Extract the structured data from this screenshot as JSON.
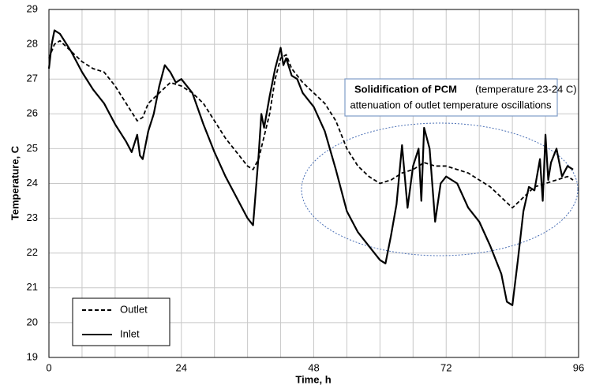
{
  "chart_data": {
    "type": "line",
    "xlabel": "Time, h",
    "ylabel": "Temperature, C",
    "xlim": [
      0,
      96
    ],
    "ylim": [
      19,
      29
    ],
    "xticks": [
      0,
      24,
      48,
      72,
      96
    ],
    "yticks": [
      19,
      20,
      21,
      22,
      23,
      24,
      25,
      26,
      27,
      28,
      29
    ],
    "xgrid": [
      0,
      6,
      12,
      18,
      24,
      30,
      36,
      42,
      48,
      54,
      60,
      66,
      72,
      78,
      84,
      90,
      96
    ],
    "grid": true,
    "legend": "lower left",
    "annotation": {
      "title": "Solidification of PCM",
      "detail": "(temperature 23-24 C)",
      "line2": "attenuation of outlet temperature oscillations"
    },
    "series": [
      {
        "name": "Outlet",
        "color": "#000000",
        "dashed": true,
        "x": [
          0,
          1,
          2,
          4,
          6,
          8,
          10,
          12,
          14,
          16,
          17,
          18,
          20,
          22,
          24,
          26,
          28,
          30,
          32,
          34,
          36,
          37,
          38,
          40,
          41,
          42,
          43,
          44,
          46,
          48,
          50,
          52,
          54,
          56,
          58,
          60,
          62,
          64,
          66,
          68,
          70,
          72,
          74,
          76,
          78,
          80,
          82,
          84,
          86,
          88,
          90,
          92,
          94,
          95
        ],
        "values": [
          27.6,
          28.0,
          28.1,
          27.8,
          27.5,
          27.3,
          27.2,
          26.8,
          26.3,
          25.8,
          25.9,
          26.3,
          26.6,
          26.9,
          26.8,
          26.6,
          26.3,
          25.8,
          25.3,
          24.9,
          24.5,
          24.4,
          24.7,
          26.0,
          27.0,
          27.6,
          27.7,
          27.3,
          26.9,
          26.6,
          26.3,
          25.8,
          25.0,
          24.5,
          24.2,
          24.0,
          24.1,
          24.3,
          24.4,
          24.6,
          24.5,
          24.5,
          24.4,
          24.3,
          24.1,
          23.9,
          23.6,
          23.3,
          23.6,
          23.9,
          24.0,
          24.1,
          24.2,
          24.1
        ]
      },
      {
        "name": "Inlet",
        "color": "#000000",
        "dashed": false,
        "x": [
          0,
          0.5,
          1,
          2,
          4,
          6,
          8,
          10,
          12,
          14,
          15,
          16,
          16.5,
          17,
          18,
          19,
          20,
          21,
          22,
          23,
          24,
          26,
          28,
          30,
          32,
          34,
          36,
          37,
          38,
          38.5,
          39,
          40,
          41,
          42,
          42.5,
          43,
          44,
          45,
          46,
          48,
          50,
          52,
          54,
          56,
          58,
          60,
          61,
          62,
          63,
          64,
          65,
          66,
          67,
          67.5,
          68,
          69,
          70,
          71,
          72,
          74,
          76,
          78,
          80,
          82,
          83,
          84,
          85,
          86,
          87,
          88,
          89,
          89.5,
          90,
          90.5,
          91,
          92,
          93,
          94,
          95
        ],
        "values": [
          27.3,
          28.0,
          28.4,
          28.3,
          27.8,
          27.2,
          26.7,
          26.3,
          25.7,
          25.2,
          24.9,
          25.4,
          24.8,
          24.7,
          25.5,
          26.0,
          26.8,
          27.4,
          27.2,
          26.9,
          27.0,
          26.6,
          25.7,
          24.9,
          24.2,
          23.6,
          23.0,
          22.8,
          24.8,
          26.0,
          25.6,
          26.5,
          27.3,
          27.9,
          27.4,
          27.6,
          27.1,
          27.0,
          26.6,
          26.2,
          25.5,
          24.4,
          23.2,
          22.6,
          22.2,
          21.8,
          21.7,
          22.5,
          23.4,
          25.1,
          23.3,
          24.5,
          25.0,
          23.5,
          25.6,
          25.0,
          22.9,
          24.0,
          24.2,
          24.0,
          23.3,
          22.9,
          22.2,
          21.4,
          20.6,
          20.5,
          21.8,
          23.2,
          23.9,
          23.8,
          24.7,
          23.5,
          25.4,
          24.1,
          24.6,
          25.0,
          24.2,
          24.5,
          24.4
        ]
      }
    ]
  }
}
